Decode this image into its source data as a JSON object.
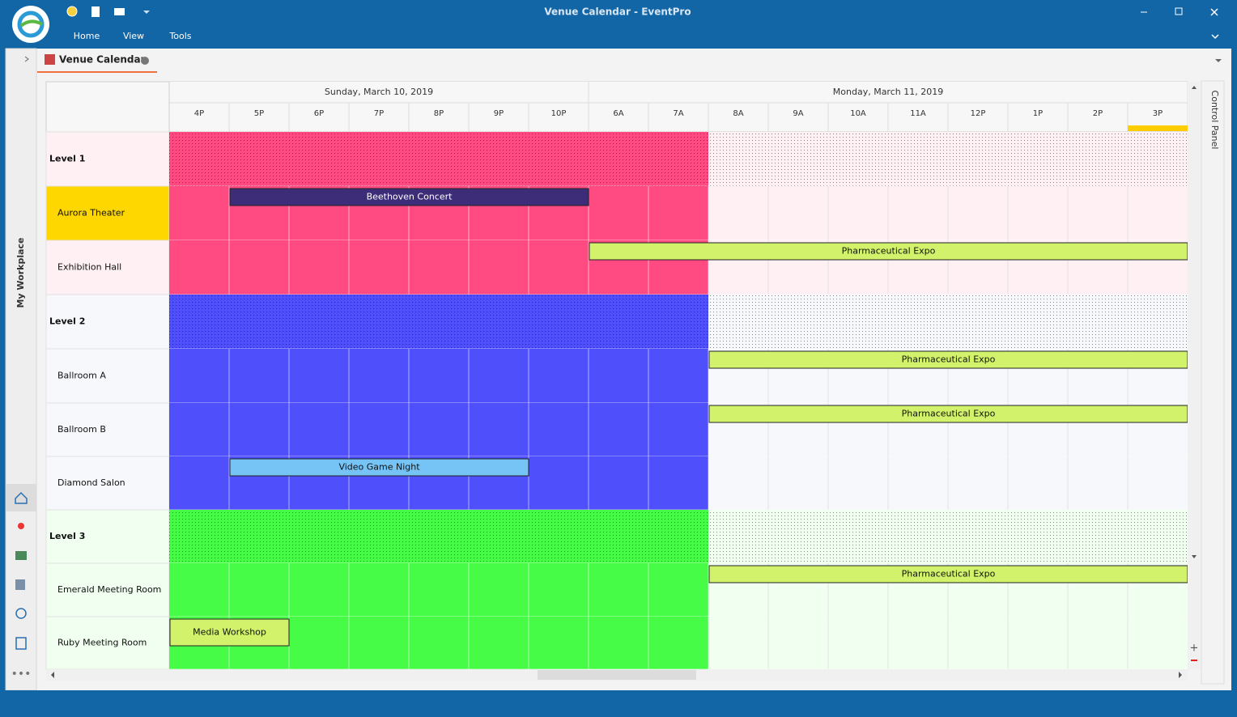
{
  "title_bar": {
    "title": "Venue Calendar - EventPro"
  },
  "menu": [
    "Home",
    "View",
    "Tools"
  ],
  "tab": {
    "title": "Venue Calendar"
  },
  "side_panel": {
    "label": "My Workplace"
  },
  "control_panel": {
    "label": "Control Panel"
  },
  "calendar": {
    "dates": [
      "Sunday, March 10, 2019",
      "Monday, March 11, 2019"
    ],
    "hours": [
      "4P",
      "5P",
      "6P",
      "7P",
      "8P",
      "9P",
      "10P",
      "6A",
      "7A",
      "8A",
      "9A",
      "10A",
      "11A",
      "12P",
      "1P",
      "2P",
      "3P"
    ],
    "resources": [
      {
        "name": "Level 1"
      },
      {
        "name": "Aurora Theater"
      },
      {
        "name": "Exhibition Hall"
      },
      {
        "name": "Level 2"
      },
      {
        "name": "Ballroom A"
      },
      {
        "name": "Ballroom B"
      },
      {
        "name": "Diamond Salon"
      },
      {
        "name": "Level 3"
      },
      {
        "name": "Emerald Meeting Room"
      },
      {
        "name": "Ruby Meeting Room"
      }
    ],
    "events": [
      {
        "name": "Beethoven Concert"
      },
      {
        "name": "Pharmaceutical Expo"
      },
      {
        "name": "Pharmaceutical Expo"
      },
      {
        "name": "Pharmaceutical Expo"
      },
      {
        "name": "Video Game Night"
      },
      {
        "name": "Pharmaceutical Expo"
      },
      {
        "name": "Media Workshop"
      }
    ]
  }
}
